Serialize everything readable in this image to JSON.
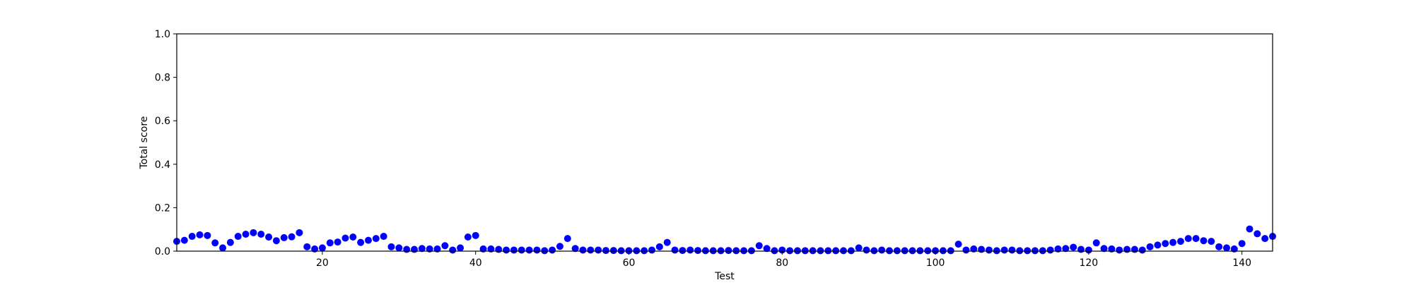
{
  "chart_data": {
    "type": "scatter",
    "title": "",
    "xlabel": "Test",
    "ylabel": "Total score",
    "xlim": [
      1,
      144
    ],
    "ylim": [
      0,
      1
    ],
    "xticks": [
      20,
      40,
      60,
      80,
      100,
      120,
      140
    ],
    "yticks": [
      0,
      0.2,
      0.4,
      0.6,
      0.8,
      1.0
    ],
    "xtick_labels": [
      "20",
      "40",
      "60",
      "80",
      "100",
      "120",
      "140"
    ],
    "ytick_labels": [
      "0.0",
      "0.2",
      "0.4",
      "0.6",
      "0.8",
      "1.0"
    ],
    "grid": false,
    "legend": "none",
    "marker_color": "#0000ff",
    "series": [
      {
        "x": [
          1,
          2,
          3,
          4,
          5,
          6,
          7,
          8,
          9,
          10,
          11,
          12,
          13,
          14,
          15,
          16,
          17,
          18,
          19,
          20,
          21,
          22,
          23,
          24,
          25,
          26,
          27,
          28,
          29,
          30,
          31,
          32,
          33,
          34,
          35,
          36,
          37,
          38,
          39,
          40,
          41,
          42,
          43,
          44,
          45,
          46,
          47,
          48,
          49,
          50,
          51,
          52,
          53,
          54,
          55,
          56,
          57,
          58,
          59,
          60,
          61,
          62,
          63,
          64,
          65,
          66,
          67,
          68,
          69,
          70,
          71,
          72,
          73,
          74,
          75,
          76,
          77,
          78,
          79,
          80,
          81,
          82,
          83,
          84,
          85,
          86,
          87,
          88,
          89,
          90,
          91,
          92,
          93,
          94,
          95,
          96,
          97,
          98,
          99,
          100,
          101,
          102,
          103,
          104,
          105,
          106,
          107,
          108,
          109,
          110,
          111,
          112,
          113,
          114,
          115,
          116,
          117,
          118,
          119,
          120,
          121,
          122,
          123,
          124,
          125,
          126,
          127,
          128,
          129,
          130,
          131,
          132,
          133,
          134,
          135,
          136,
          137,
          138,
          139,
          140,
          141,
          142,
          143,
          144
        ],
        "y": [
          0.045,
          0.05,
          0.068,
          0.075,
          0.072,
          0.038,
          0.015,
          0.04,
          0.068,
          0.078,
          0.085,
          0.078,
          0.065,
          0.048,
          0.062,
          0.066,
          0.085,
          0.02,
          0.01,
          0.015,
          0.038,
          0.042,
          0.06,
          0.065,
          0.04,
          0.05,
          0.058,
          0.068,
          0.02,
          0.015,
          0.008,
          0.008,
          0.012,
          0.01,
          0.01,
          0.025,
          0.005,
          0.015,
          0.065,
          0.072,
          0.01,
          0.01,
          0.008,
          0.005,
          0.005,
          0.005,
          0.005,
          0.005,
          0.002,
          0.005,
          0.022,
          0.058,
          0.012,
          0.005,
          0.005,
          0.005,
          0.003,
          0.003,
          0.002,
          0.002,
          0.002,
          0.002,
          0.005,
          0.02,
          0.04,
          0.005,
          0.003,
          0.005,
          0.003,
          0.002,
          0.002,
          0.002,
          0.003,
          0.002,
          0.002,
          0.002,
          0.025,
          0.012,
          0.002,
          0.005,
          0.002,
          0.002,
          0.002,
          0.002,
          0.002,
          0.002,
          0.002,
          0.002,
          0.002,
          0.015,
          0.005,
          0.002,
          0.005,
          0.002,
          0.002,
          0.002,
          0.002,
          0.002,
          0.002,
          0.002,
          0.002,
          0.002,
          0.032,
          0.005,
          0.01,
          0.008,
          0.005,
          0.002,
          0.005,
          0.005,
          0.002,
          0.002,
          0.002,
          0.002,
          0.005,
          0.01,
          0.012,
          0.018,
          0.008,
          0.005,
          0.038,
          0.012,
          0.01,
          0.005,
          0.008,
          0.008,
          0.005,
          0.02,
          0.028,
          0.035,
          0.04,
          0.045,
          0.058,
          0.058,
          0.048,
          0.045,
          0.02,
          0.015,
          0.01,
          0.035,
          0.102,
          0.08,
          0.058,
          0.068
        ]
      }
    ]
  }
}
